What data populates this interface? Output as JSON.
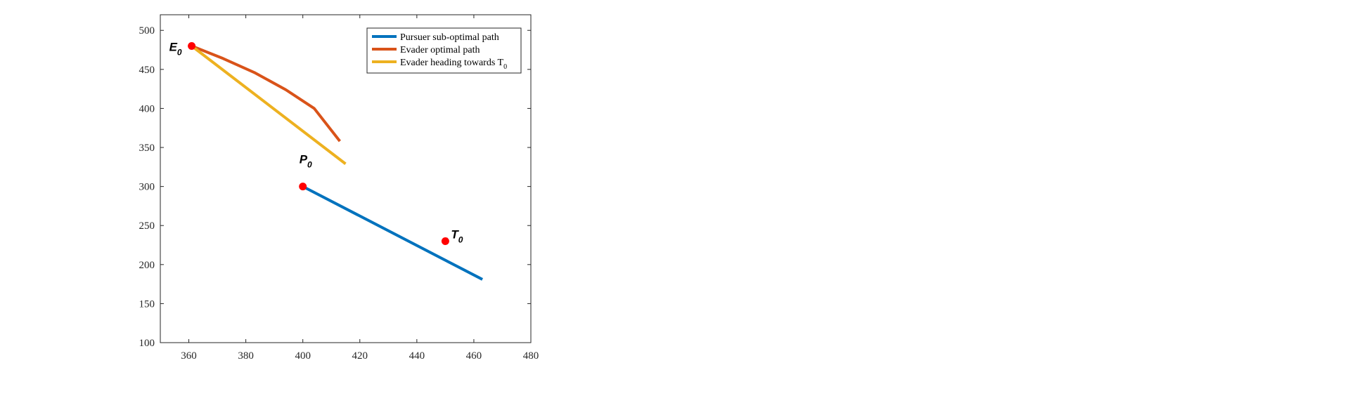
{
  "chart_data": {
    "type": "line",
    "xlim": [
      350,
      480
    ],
    "ylim": [
      100,
      520
    ],
    "x_ticks": [
      360,
      380,
      400,
      420,
      440,
      460,
      480
    ],
    "y_ticks": [
      100,
      150,
      200,
      250,
      300,
      350,
      400,
      450,
      500
    ],
    "grid": false,
    "legend_position": "top-right",
    "series": [
      {
        "name": "Pursuer sub-optimal path",
        "color": "#0072BD",
        "x": [
          400,
          463
        ],
        "y": [
          300,
          181
        ]
      },
      {
        "name": "Evader optimal path",
        "color": "#D95319",
        "x": [
          361,
          372,
          383,
          394,
          404,
          413
        ],
        "y": [
          480,
          464,
          446,
          424,
          400,
          358
        ]
      },
      {
        "name": "Evader heading towards T",
        "name_subscript": "0",
        "color": "#EDB120",
        "x": [
          361,
          415
        ],
        "y": [
          480,
          329
        ]
      }
    ],
    "points": [
      {
        "label": "E",
        "sub": "0",
        "x": 361,
        "y": 480,
        "color": "#ff0000",
        "label_pos": "left"
      },
      {
        "label": "P",
        "sub": "0",
        "x": 400,
        "y": 300,
        "color": "#ff0000",
        "label_pos": "above"
      },
      {
        "label": "T",
        "sub": "0",
        "x": 450,
        "y": 230,
        "color": "#ff0000",
        "label_pos": "right"
      }
    ]
  }
}
